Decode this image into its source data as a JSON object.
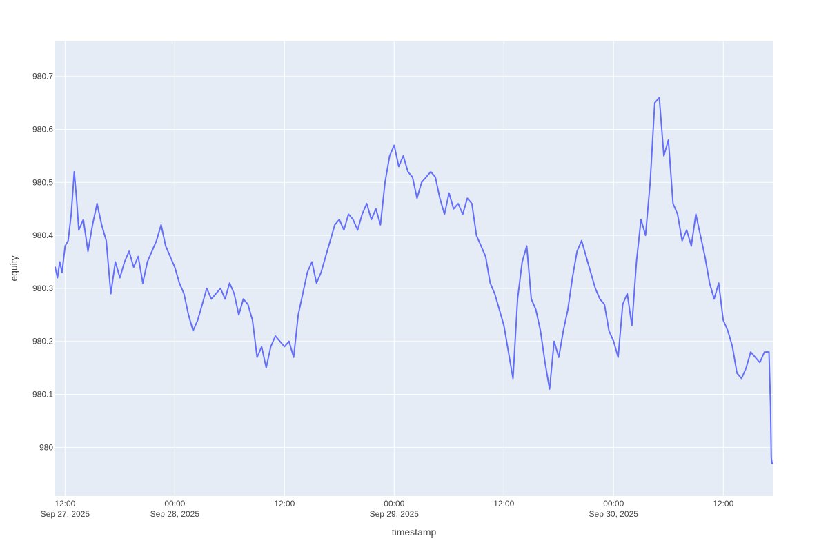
{
  "chart_data": {
    "type": "line",
    "title": "",
    "xlabel": "timestamp",
    "ylabel": "equity",
    "x_range": [
      "2025-09-27T10:55:00",
      "2025-09-30T17:25:00"
    ],
    "ylim": [
      979.908,
      980.766
    ],
    "grid": true,
    "legend": "none",
    "colors": {
      "plot_bg": "#E5ECF6",
      "line": "#636EFA",
      "grid": "#FFFFFF",
      "text": "#444444"
    },
    "x_ticks": [
      {
        "t": "2025-09-27T12:00:00",
        "line1": "12:00",
        "line2": "Sep 27, 2025"
      },
      {
        "t": "2025-09-28T00:00:00",
        "line1": "00:00",
        "line2": "Sep 28, 2025"
      },
      {
        "t": "2025-09-28T12:00:00",
        "line1": "12:00",
        "line2": ""
      },
      {
        "t": "2025-09-29T00:00:00",
        "line1": "00:00",
        "line2": "Sep 29, 2025"
      },
      {
        "t": "2025-09-29T12:00:00",
        "line1": "12:00",
        "line2": ""
      },
      {
        "t": "2025-09-30T00:00:00",
        "line1": "00:00",
        "line2": "Sep 30, 2025"
      },
      {
        "t": "2025-09-30T12:00:00",
        "line1": "12:00",
        "line2": ""
      }
    ],
    "y_ticks": [
      {
        "v": 980.0,
        "label": "980"
      },
      {
        "v": 980.1,
        "label": "980.1"
      },
      {
        "v": 980.2,
        "label": "980.2"
      },
      {
        "v": 980.3,
        "label": "980.3"
      },
      {
        "v": 980.4,
        "label": "980.4"
      },
      {
        "v": 980.5,
        "label": "980.5"
      },
      {
        "v": 980.6,
        "label": "980.6"
      },
      {
        "v": 980.7,
        "label": "980.7"
      }
    ],
    "series": [
      {
        "x": [
          "2025-09-27T10:55:00",
          "2025-09-27T11:10:00",
          "2025-09-27T11:25:00",
          "2025-09-27T11:40:00",
          "2025-09-27T12:00:00",
          "2025-09-27T12:20:00",
          "2025-09-27T12:40:00",
          "2025-09-27T13:00:00",
          "2025-09-27T13:15:00",
          "2025-09-27T13:30:00",
          "2025-09-27T14:00:00",
          "2025-09-27T14:30:00",
          "2025-09-27T15:00:00",
          "2025-09-27T15:30:00",
          "2025-09-27T16:00:00",
          "2025-09-27T16:30:00",
          "2025-09-27T17:00:00",
          "2025-09-27T17:30:00",
          "2025-09-27T18:00:00",
          "2025-09-27T18:30:00",
          "2025-09-27T19:00:00",
          "2025-09-27T19:30:00",
          "2025-09-27T20:00:00",
          "2025-09-27T20:30:00",
          "2025-09-27T21:00:00",
          "2025-09-27T21:30:00",
          "2025-09-27T22:00:00",
          "2025-09-27T22:30:00",
          "2025-09-27T23:00:00",
          "2025-09-27T23:30:00",
          "2025-09-28T00:00:00",
          "2025-09-28T00:30:00",
          "2025-09-28T01:00:00",
          "2025-09-28T01:30:00",
          "2025-09-28T02:00:00",
          "2025-09-28T02:30:00",
          "2025-09-28T03:00:00",
          "2025-09-28T03:30:00",
          "2025-09-28T04:00:00",
          "2025-09-28T04:30:00",
          "2025-09-28T05:00:00",
          "2025-09-28T05:30:00",
          "2025-09-28T06:00:00",
          "2025-09-28T06:30:00",
          "2025-09-28T07:00:00",
          "2025-09-28T07:30:00",
          "2025-09-28T08:00:00",
          "2025-09-28T08:30:00",
          "2025-09-28T09:00:00",
          "2025-09-28T09:30:00",
          "2025-09-28T10:00:00",
          "2025-09-28T10:30:00",
          "2025-09-28T11:00:00",
          "2025-09-28T11:30:00",
          "2025-09-28T12:00:00",
          "2025-09-28T12:30:00",
          "2025-09-28T13:00:00",
          "2025-09-28T13:30:00",
          "2025-09-28T14:00:00",
          "2025-09-28T14:30:00",
          "2025-09-28T15:00:00",
          "2025-09-28T15:30:00",
          "2025-09-28T16:00:00",
          "2025-09-28T16:30:00",
          "2025-09-28T17:00:00",
          "2025-09-28T17:30:00",
          "2025-09-28T18:00:00",
          "2025-09-28T18:30:00",
          "2025-09-28T19:00:00",
          "2025-09-28T19:30:00",
          "2025-09-28T20:00:00",
          "2025-09-28T20:30:00",
          "2025-09-28T21:00:00",
          "2025-09-28T21:30:00",
          "2025-09-28T22:00:00",
          "2025-09-28T22:30:00",
          "2025-09-28T23:00:00",
          "2025-09-28T23:30:00",
          "2025-09-29T00:00:00",
          "2025-09-29T00:30:00",
          "2025-09-29T01:00:00",
          "2025-09-29T01:30:00",
          "2025-09-29T02:00:00",
          "2025-09-29T02:30:00",
          "2025-09-29T03:00:00",
          "2025-09-29T03:30:00",
          "2025-09-29T04:00:00",
          "2025-09-29T04:30:00",
          "2025-09-29T05:00:00",
          "2025-09-29T05:30:00",
          "2025-09-29T06:00:00",
          "2025-09-29T06:30:00",
          "2025-09-29T07:00:00",
          "2025-09-29T07:30:00",
          "2025-09-29T08:00:00",
          "2025-09-29T08:30:00",
          "2025-09-29T09:00:00",
          "2025-09-29T09:30:00",
          "2025-09-29T10:00:00",
          "2025-09-29T10:30:00",
          "2025-09-29T11:00:00",
          "2025-09-29T11:30:00",
          "2025-09-29T12:00:00",
          "2025-09-29T12:30:00",
          "2025-09-29T13:00:00",
          "2025-09-29T13:30:00",
          "2025-09-29T14:00:00",
          "2025-09-29T14:30:00",
          "2025-09-29T15:00:00",
          "2025-09-29T15:30:00",
          "2025-09-29T16:00:00",
          "2025-09-29T16:30:00",
          "2025-09-29T17:00:00",
          "2025-09-29T17:30:00",
          "2025-09-29T18:00:00",
          "2025-09-29T18:30:00",
          "2025-09-29T19:00:00",
          "2025-09-29T19:30:00",
          "2025-09-29T20:00:00",
          "2025-09-29T20:30:00",
          "2025-09-29T21:00:00",
          "2025-09-29T21:30:00",
          "2025-09-29T22:00:00",
          "2025-09-29T22:30:00",
          "2025-09-29T23:00:00",
          "2025-09-29T23:30:00",
          "2025-09-30T00:00:00",
          "2025-09-30T00:30:00",
          "2025-09-30T01:00:00",
          "2025-09-30T01:30:00",
          "2025-09-30T02:00:00",
          "2025-09-30T02:30:00",
          "2025-09-30T03:00:00",
          "2025-09-30T03:30:00",
          "2025-09-30T04:00:00",
          "2025-09-30T04:30:00",
          "2025-09-30T05:00:00",
          "2025-09-30T05:30:00",
          "2025-09-30T06:00:00",
          "2025-09-30T06:30:00",
          "2025-09-30T07:00:00",
          "2025-09-30T07:30:00",
          "2025-09-30T08:00:00",
          "2025-09-30T08:30:00",
          "2025-09-30T09:00:00",
          "2025-09-30T09:30:00",
          "2025-09-30T10:00:00",
          "2025-09-30T10:30:00",
          "2025-09-30T11:00:00",
          "2025-09-30T11:30:00",
          "2025-09-30T12:00:00",
          "2025-09-30T12:30:00",
          "2025-09-30T13:00:00",
          "2025-09-30T13:30:00",
          "2025-09-30T14:00:00",
          "2025-09-30T14:30:00",
          "2025-09-30T15:00:00",
          "2025-09-30T15:30:00",
          "2025-09-30T16:00:00",
          "2025-09-30T16:30:00",
          "2025-09-30T17:00:00",
          "2025-09-30T17:10:00",
          "2025-09-30T17:15:00",
          "2025-09-30T17:20:00",
          "2025-09-30T17:25:00"
        ],
        "y": [
          980.34,
          980.32,
          980.35,
          980.33,
          980.38,
          980.39,
          980.44,
          980.52,
          980.47,
          980.41,
          980.43,
          980.37,
          980.42,
          980.46,
          980.42,
          980.39,
          980.29,
          980.35,
          980.32,
          980.35,
          980.37,
          980.34,
          980.36,
          980.31,
          980.35,
          980.37,
          980.39,
          980.42,
          980.38,
          980.36,
          980.34,
          980.31,
          980.29,
          980.25,
          980.22,
          980.24,
          980.27,
          980.3,
          980.28,
          980.29,
          980.3,
          980.28,
          980.31,
          980.29,
          980.25,
          980.28,
          980.27,
          980.24,
          980.17,
          980.19,
          980.15,
          980.19,
          980.21,
          980.2,
          980.19,
          980.2,
          980.17,
          980.25,
          980.29,
          980.33,
          980.35,
          980.31,
          980.33,
          980.36,
          980.39,
          980.42,
          980.43,
          980.41,
          980.44,
          980.43,
          980.41,
          980.44,
          980.46,
          980.43,
          980.45,
          980.42,
          980.5,
          980.55,
          980.57,
          980.53,
          980.55,
          980.52,
          980.51,
          980.47,
          980.5,
          980.51,
          980.52,
          980.51,
          980.47,
          980.44,
          980.48,
          980.45,
          980.46,
          980.44,
          980.47,
          980.46,
          980.4,
          980.38,
          980.36,
          980.31,
          980.29,
          980.26,
          980.23,
          980.18,
          980.13,
          980.28,
          980.35,
          980.38,
          980.28,
          980.26,
          980.22,
          980.16,
          980.11,
          980.2,
          980.17,
          980.22,
          980.26,
          980.32,
          980.37,
          980.39,
          980.36,
          980.33,
          980.3,
          980.28,
          980.27,
          980.22,
          980.2,
          980.17,
          980.27,
          980.29,
          980.23,
          980.35,
          980.43,
          980.4,
          980.5,
          980.65,
          980.66,
          980.55,
          980.58,
          980.46,
          980.44,
          980.39,
          980.41,
          980.38,
          980.44,
          980.4,
          980.36,
          980.31,
          980.28,
          980.31,
          980.24,
          980.22,
          980.19,
          980.14,
          980.13,
          980.15,
          980.18,
          980.17,
          980.16,
          980.18,
          980.18,
          980.08,
          979.98,
          979.97,
          979.97
        ],
        "color": "#636EFA"
      }
    ]
  }
}
